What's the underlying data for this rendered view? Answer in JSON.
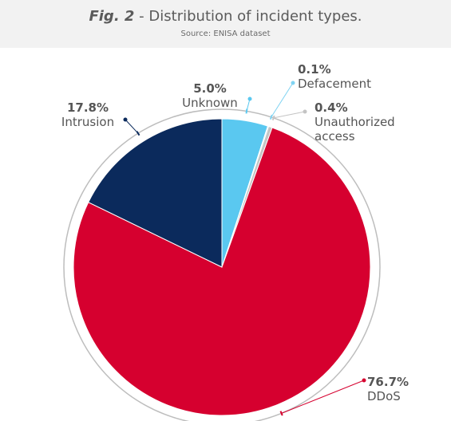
{
  "figure": {
    "label": "Fig. 2",
    "separator": " - ",
    "title": "Distribution of incident types.",
    "source": "Source: ENISA dataset"
  },
  "chart_data": {
    "type": "pie",
    "title": "Fig. 2 - Distribution of incident types.",
    "subtitle": "Source: ENISA dataset",
    "slices": [
      {
        "name": "Unknown",
        "value": 5.0,
        "label": "5.0%",
        "color": "#5ac8f0"
      },
      {
        "name": "Defacement",
        "value": 0.1,
        "label": "0.1%",
        "color": "#7fd3f2"
      },
      {
        "name": "Unauthorized access",
        "value": 0.4,
        "label": "0.4%",
        "color": "#c4c4c4"
      },
      {
        "name": "DDoS",
        "value": 76.7,
        "label": "76.7%",
        "color": "#d6002f"
      },
      {
        "name": "Intrusion",
        "value": 17.8,
        "label": "17.8%",
        "color": "#0b2a5c"
      }
    ],
    "name_lines": {
      "Unauthorized access": [
        "Unauthorized",
        "access"
      ]
    },
    "start": "12 o'clock",
    "direction": "clockwise",
    "legend": "none"
  }
}
